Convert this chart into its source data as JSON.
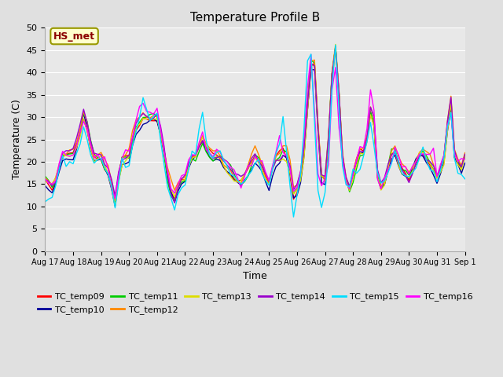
{
  "title": "Temperature Profile B",
  "xlabel": "Time",
  "ylabel": "Temperature (C)",
  "ylim": [
    0,
    50
  ],
  "background_color": "#e0e0e0",
  "plot_bg": "#e8e8e8",
  "annotation_text": "HS_met",
  "annotation_color": "#8B0000",
  "annotation_bg": "#ffffcc",
  "annotation_border": "#999900",
  "series_colors": {
    "TC_temp09": "#ff0000",
    "TC_temp10": "#000099",
    "TC_temp11": "#00cc00",
    "TC_temp12": "#ff8800",
    "TC_temp13": "#dddd00",
    "TC_temp14": "#9900cc",
    "TC_temp15": "#00ddff",
    "TC_temp16": "#ff00ff"
  },
  "tick_labels": [
    "Aug 17",
    "Aug 18",
    "Aug 19",
    "Aug 20",
    "Aug 21",
    "Aug 22",
    "Aug 23",
    "Aug 24",
    "Aug 25",
    "Aug 26",
    "Aug 27",
    "Aug 28",
    "Aug 29",
    "Aug 30",
    "Aug 31",
    "Sep 1"
  ],
  "yticks": [
    0,
    5,
    10,
    15,
    20,
    25,
    30,
    35,
    40,
    45,
    50
  ],
  "grid_color": "#ffffff",
  "linewidth": 1.0,
  "figsize": [
    6.4,
    4.8
  ],
  "dpi": 100
}
